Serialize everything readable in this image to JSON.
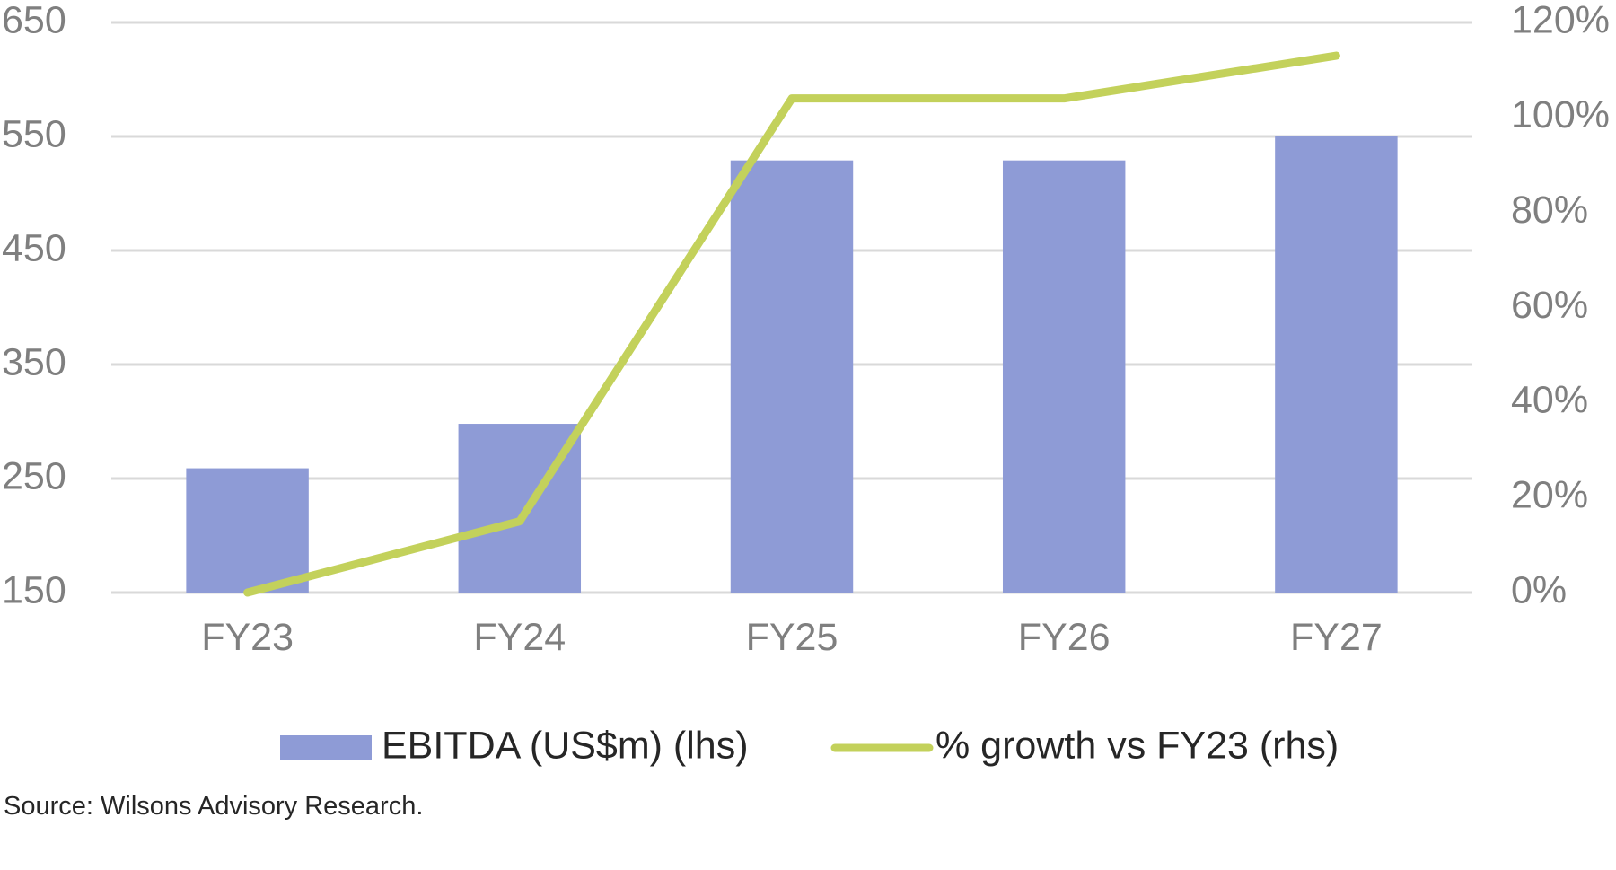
{
  "chart_data": {
    "type": "bar",
    "title": "",
    "categories": [
      "FY23",
      "FY24",
      "FY25",
      "FY26",
      "FY27"
    ],
    "series": [
      {
        "name": "EBITDA (US$m) (lhs)",
        "kind": "bar",
        "axis": "left",
        "color": "#8e9bd6",
        "values": [
          259,
          298,
          529,
          529,
          550
        ]
      },
      {
        "name": "% growth vs FY23 (rhs)",
        "kind": "line",
        "axis": "right",
        "color": "#c3d15b",
        "values": [
          0,
          15,
          104,
          104,
          113
        ]
      }
    ],
    "left_axis": {
      "min": 150,
      "max": 650,
      "ticks": [
        150,
        250,
        350,
        450,
        550,
        650
      ],
      "tick_labels": [
        "150",
        "250",
        "350",
        "450",
        "550",
        "650"
      ]
    },
    "right_axis": {
      "min": 0,
      "max": 120,
      "ticks": [
        0,
        20,
        40,
        60,
        80,
        100,
        120
      ],
      "tick_labels": [
        "0%",
        "20%",
        "40%",
        "60%",
        "80%",
        "100%",
        "120%"
      ]
    },
    "gridlines": true,
    "legend_position": "bottom",
    "xlabel": "",
    "ylabel": ""
  },
  "source": "Source: Wilsons Advisory Research."
}
